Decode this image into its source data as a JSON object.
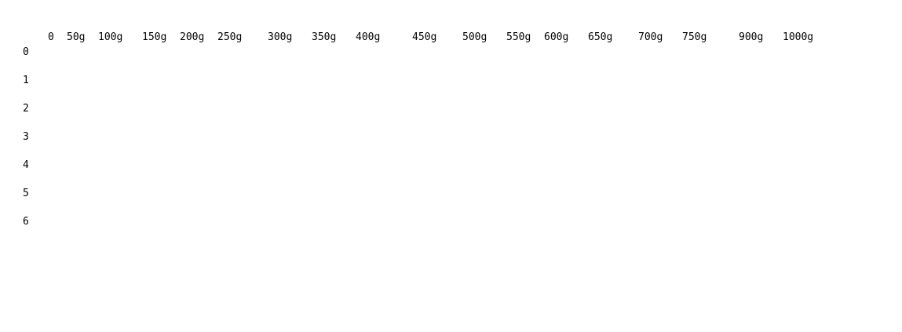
{
  "table": {
    "column_headers": [
      "0",
      "50g",
      "100g",
      "150g",
      "200g",
      "250g",
      "300g",
      "350g",
      "400g",
      "450g",
      "500g",
      "550g",
      "600g",
      "650g",
      "700g",
      "750g",
      "900g",
      "1000g"
    ],
    "row_headers": [
      "0",
      "1",
      "2",
      "3",
      "4",
      "5",
      "6"
    ]
  },
  "colors": {
    "background": "#ffffff",
    "text": "#000000"
  }
}
